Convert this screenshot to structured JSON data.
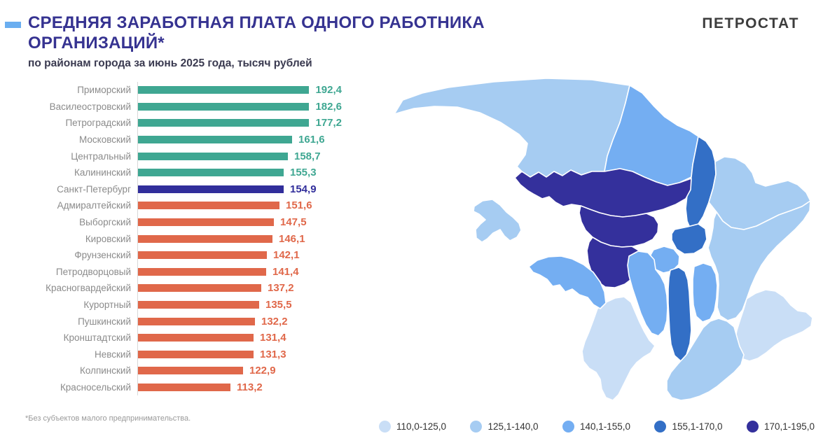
{
  "header": {
    "title": "СРЕДНЯЯ ЗАРАБОТНАЯ ПЛАТА ОДНОГО РАБОТНИКА ОРГАНИЗАЦИЙ*",
    "subtitle": "по районам города за июнь 2025 года, тысяч рублей",
    "logo": "ПЕТРОСТАТ",
    "accent_color": "#6aaef0"
  },
  "footnote": "*Без субъектов малого предпринимательства.",
  "chart_data": {
    "type": "bar",
    "orientation": "horizontal",
    "title": "Средняя заработная плата одного работника организаций по районам города за июнь 2025 года, тысяч рублей",
    "unit": "тысяч рублей",
    "rows": [
      {
        "label": "Приморский",
        "value": 192.4,
        "value_text": "192,4",
        "color": "#3fa792"
      },
      {
        "label": "Василеостровский",
        "value": 182.6,
        "value_text": "182,6",
        "color": "#3fa792"
      },
      {
        "label": "Петроградский",
        "value": 177.2,
        "value_text": "177,2",
        "color": "#3fa792"
      },
      {
        "label": "Московский",
        "value": 161.6,
        "value_text": "161,6",
        "color": "#3fa792"
      },
      {
        "label": "Центральный",
        "value": 158.7,
        "value_text": "158,7",
        "color": "#3fa792"
      },
      {
        "label": "Калининский",
        "value": 155.3,
        "value_text": "155,3",
        "color": "#3fa792"
      },
      {
        "label": "Санкт-Петербург",
        "value": 154.9,
        "value_text": "154,9",
        "color": "#312e9b"
      },
      {
        "label": "Адмиралтейский",
        "value": 151.6,
        "value_text": "151,6",
        "color": "#e0684a"
      },
      {
        "label": "Выборгский",
        "value": 147.5,
        "value_text": "147,5",
        "color": "#e0684a"
      },
      {
        "label": "Кировский",
        "value": 146.1,
        "value_text": "146,1",
        "color": "#e0684a"
      },
      {
        "label": "Фрунзенский",
        "value": 142.1,
        "value_text": "142,1",
        "color": "#e0684a"
      },
      {
        "label": "Петродворцовый",
        "value": 141.4,
        "value_text": "141,4",
        "color": "#e0684a"
      },
      {
        "label": "Красногвардейский",
        "value": 137.2,
        "value_text": "137,2",
        "color": "#e0684a"
      },
      {
        "label": "Курортный",
        "value": 135.5,
        "value_text": "135,5",
        "color": "#e0684a"
      },
      {
        "label": "Пушкинский",
        "value": 132.2,
        "value_text": "132,2",
        "color": "#e0684a"
      },
      {
        "label": "Кронштадтский",
        "value": 131.4,
        "value_text": "131,4",
        "color": "#e0684a"
      },
      {
        "label": "Невский",
        "value": 131.3,
        "value_text": "131,3",
        "color": "#e0684a"
      },
      {
        "label": "Колпинский",
        "value": 122.9,
        "value_text": "122,9",
        "color": "#e0684a"
      },
      {
        "label": "Красносельский",
        "value": 113.2,
        "value_text": "113,2",
        "color": "#e0684a"
      }
    ]
  },
  "legend": {
    "items": [
      {
        "label": "110,0-125,0",
        "color": "#c9def6",
        "range_id": "r1"
      },
      {
        "label": "125,1-140,0",
        "color": "#a6ccf2",
        "range_id": "r2"
      },
      {
        "label": "140,1-155,0",
        "color": "#74aef2",
        "range_id": "r3"
      },
      {
        "label": "155,1-170,0",
        "color": "#336fc6",
        "range_id": "r4"
      },
      {
        "label": "170,1-195,0",
        "color": "#34309c",
        "range_id": "r5"
      }
    ]
  },
  "map": {
    "districts": [
      {
        "id": "kurortny",
        "name": "Курортный",
        "value": 135.5,
        "range_id": "r2"
      },
      {
        "id": "vyborgsky",
        "name": "Выборгский",
        "value": 147.5,
        "range_id": "r3"
      },
      {
        "id": "kalininsky",
        "name": "Калининский",
        "value": 155.3,
        "range_id": "r4"
      },
      {
        "id": "krasnogvardeysky",
        "name": "Красногвардейский",
        "value": 137.2,
        "range_id": "r2"
      },
      {
        "id": "primorsky",
        "name": "Приморский",
        "value": 192.4,
        "range_id": "r5"
      },
      {
        "id": "petrogradsky",
        "name": "Петроградский",
        "value": 177.2,
        "range_id": "r5"
      },
      {
        "id": "vasileostrovsky",
        "name": "Василеостровский",
        "value": 182.6,
        "range_id": "r5"
      },
      {
        "id": "centralny",
        "name": "Центральный",
        "value": 158.7,
        "range_id": "r4"
      },
      {
        "id": "admiralteysky",
        "name": "Адмиралтейский",
        "value": 151.6,
        "range_id": "r3"
      },
      {
        "id": "moskovsky",
        "name": "Московский",
        "value": 161.6,
        "range_id": "r4"
      },
      {
        "id": "frunzensky",
        "name": "Фрунзенский",
        "value": 142.1,
        "range_id": "r3"
      },
      {
        "id": "nevsky",
        "name": "Невский",
        "value": 131.3,
        "range_id": "r2"
      },
      {
        "id": "kolpinsky",
        "name": "Колпинский",
        "value": 122.9,
        "range_id": "r1"
      },
      {
        "id": "pushkinsky",
        "name": "Пушкинский",
        "value": 132.2,
        "range_id": "r2"
      },
      {
        "id": "kirovsky",
        "name": "Кировский",
        "value": 146.1,
        "range_id": "r3"
      },
      {
        "id": "krasnoselsky",
        "name": "Красносельский",
        "value": 113.2,
        "range_id": "r1"
      },
      {
        "id": "petrodvortsovy",
        "name": "Петродворцовый",
        "value": 141.4,
        "range_id": "r3"
      },
      {
        "id": "kronshtadtsky",
        "name": "Кронштадтский",
        "value": 131.4,
        "range_id": "r2"
      }
    ]
  }
}
